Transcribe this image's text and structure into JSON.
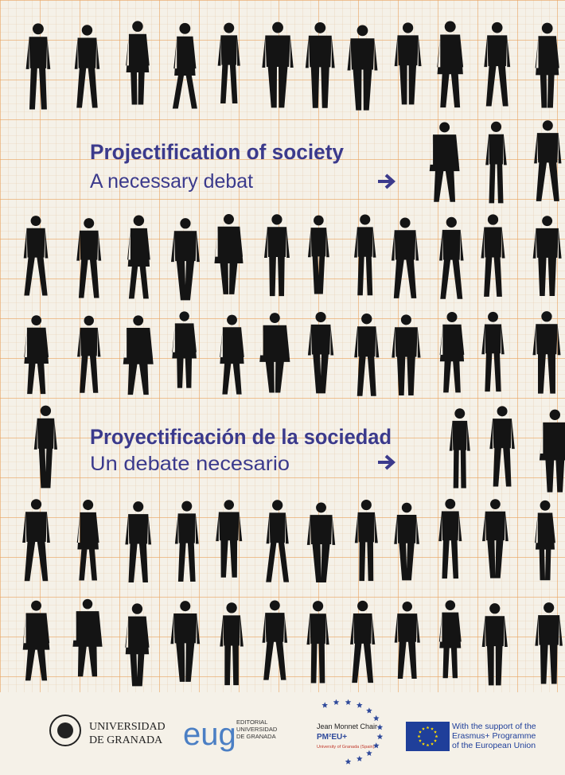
{
  "titles": [
    {
      "title": "Projectification of society",
      "subtitle": "A necessary debat"
    },
    {
      "title": "Proyectificación de la sociedad",
      "subtitle": "Un debate necesario"
    }
  ],
  "logos": {
    "university": [
      "UNIVERSIDAD",
      "DE GRANADA"
    ],
    "eug": "eug",
    "editorial": [
      "EDITORIAL",
      "UNIVERSIDAD",
      "DE GRANADA"
    ],
    "jean_monnet": [
      "Jean Monnet Chair",
      "PM²EU+",
      "University of Granada (Spain)"
    ],
    "erasmus": [
      "With the support of the",
      "Erasmus+ Programme",
      "of the European Union"
    ]
  }
}
